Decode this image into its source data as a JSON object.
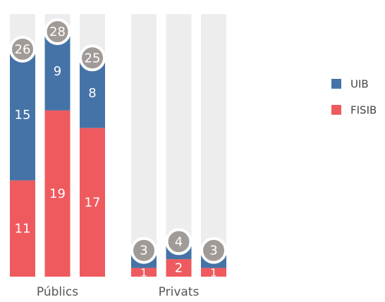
{
  "chart_data": {
    "type": "stacked-bar",
    "groups": [
      "Públics",
      "Privats"
    ],
    "categories": [
      null,
      null,
      null,
      null,
      null,
      null
    ],
    "series": [
      {
        "name": "UIB",
        "color": "#4573a7",
        "values": [
          15,
          9,
          8,
          2,
          2,
          2
        ]
      },
      {
        "name": "FISIB",
        "color": "#ef5a5f",
        "values": [
          11,
          19,
          17,
          1,
          2,
          1
        ]
      }
    ],
    "totals": [
      26,
      28,
      25,
      3,
      4,
      3
    ],
    "legend": "right"
  }
}
